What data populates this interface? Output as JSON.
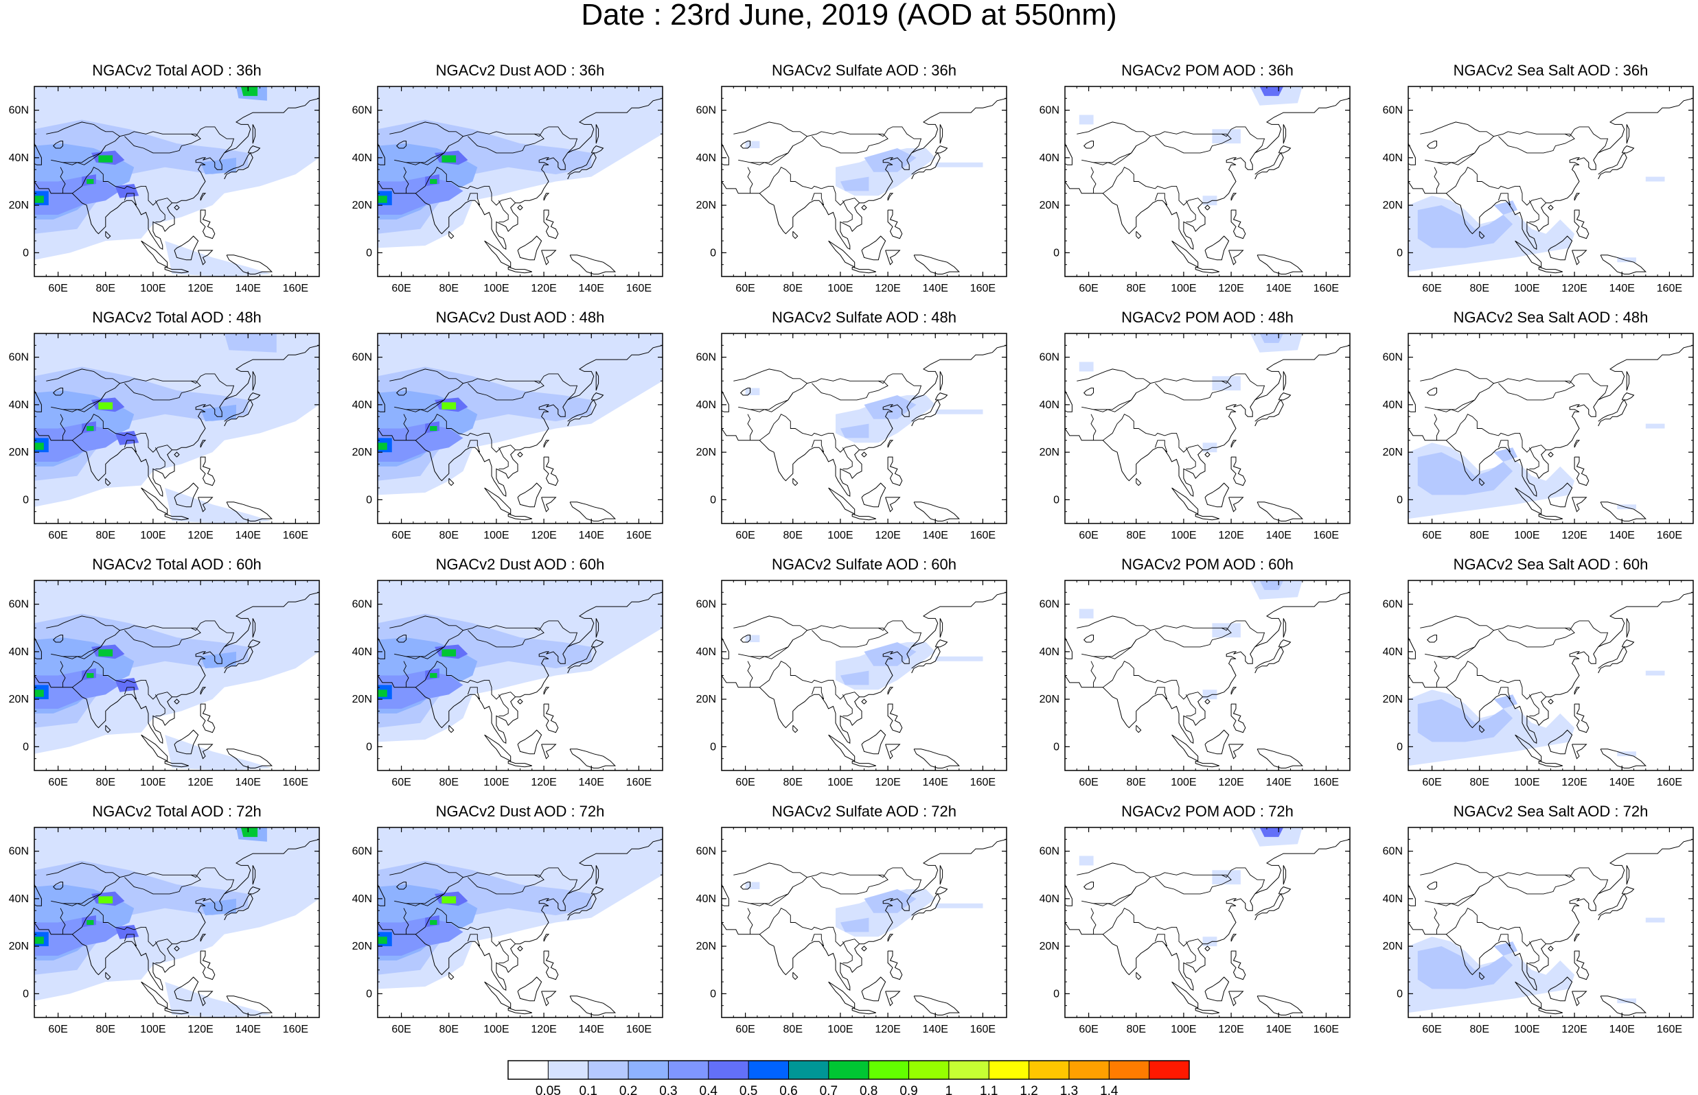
{
  "title": "Date : 23rd June, 2019 (AOD at 550nm)",
  "axes": {
    "lon_ticks": [
      "60E",
      "80E",
      "100E",
      "120E",
      "140E",
      "160E"
    ],
    "lat_ticks": [
      "60N",
      "40N",
      "20N",
      "0"
    ],
    "lon_range": [
      50,
      170
    ],
    "lat_range": [
      -10,
      70
    ]
  },
  "panels": [
    {
      "title": "NGACv2 Total AOD : 36h"
    },
    {
      "title": "NGACv2 Dust AOD : 36h"
    },
    {
      "title": "NGACv2 Sulfate AOD : 36h"
    },
    {
      "title": "NGACv2 POM AOD : 36h"
    },
    {
      "title": "NGACv2 Sea Salt AOD : 36h"
    },
    {
      "title": "NGACv2 Total AOD : 48h"
    },
    {
      "title": "NGACv2 Dust AOD : 48h"
    },
    {
      "title": "NGACv2 Sulfate AOD : 48h"
    },
    {
      "title": "NGACv2 POM AOD : 48h"
    },
    {
      "title": "NGACv2 Sea Salt AOD : 48h"
    },
    {
      "title": "NGACv2 Total AOD : 60h"
    },
    {
      "title": "NGACv2 Dust AOD : 60h"
    },
    {
      "title": "NGACv2 Sulfate AOD : 60h"
    },
    {
      "title": "NGACv2 POM AOD : 60h"
    },
    {
      "title": "NGACv2 Sea Salt AOD : 60h"
    },
    {
      "title": "NGACv2 Total AOD : 72h"
    },
    {
      "title": "NGACv2 Dust AOD : 72h"
    },
    {
      "title": "NGACv2 Sulfate AOD : 72h"
    },
    {
      "title": "NGACv2 POM AOD : 72h"
    },
    {
      "title": "NGACv2 Sea Salt  AOD : 72h"
    }
  ],
  "colorbar": {
    "labels": [
      "0.05",
      "0.1",
      "0.2",
      "0.3",
      "0.4",
      "0.5",
      "0.6",
      "0.7",
      "0.8",
      "0.9",
      "1",
      "1.1",
      "1.2",
      "1.3",
      "1.4"
    ],
    "colors": [
      "#ffffff",
      "#d6e2ff",
      "#b5c9ff",
      "#8eb2ff",
      "#7f96ff",
      "#6370f8",
      "#0063ff",
      "#009696",
      "#00c633",
      "#63ff00",
      "#96ff00",
      "#c6ff33",
      "#ffff00",
      "#ffc600",
      "#ffa000",
      "#ff7c00",
      "#ff1900"
    ]
  }
}
